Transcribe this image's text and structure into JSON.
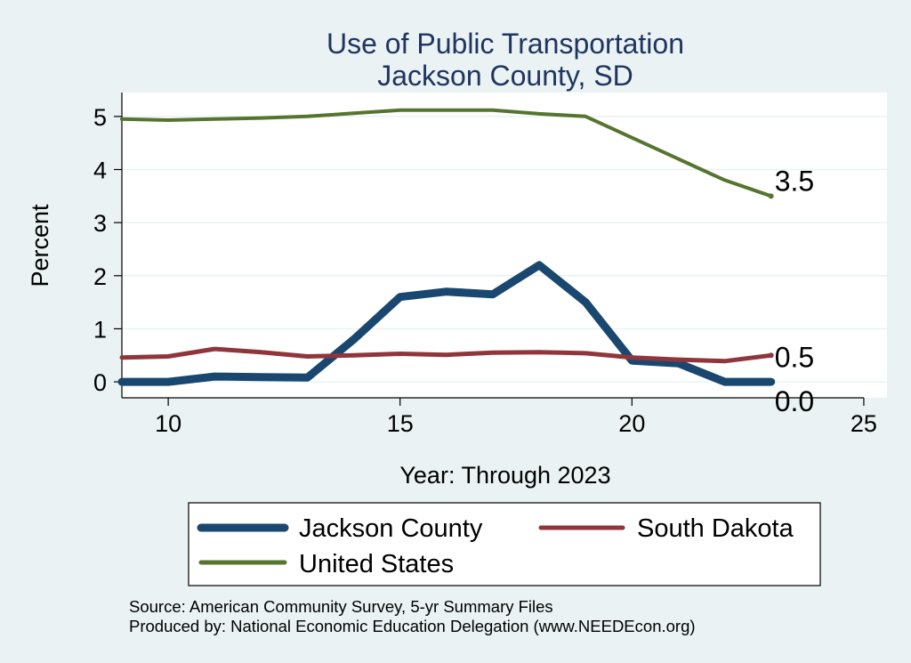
{
  "chart_data": {
    "type": "line",
    "title": "Use of Public Transportation",
    "subtitle": "Jackson County, SD",
    "xlabel": "Year: Through 2023",
    "ylabel": "Percent",
    "xlim": [
      9,
      25.5
    ],
    "ylim": [
      -0.3,
      5.45
    ],
    "xticks": [
      10,
      15,
      20,
      25
    ],
    "yticks": [
      0,
      1,
      2,
      3,
      4,
      5
    ],
    "grid": true,
    "legend_position": "bottom",
    "series": [
      {
        "name": "Jackson County",
        "color": "#1a476f",
        "x": [
          9,
          10,
          11,
          12,
          13,
          14,
          15,
          16,
          17,
          18,
          19,
          20,
          21,
          22,
          23
        ],
        "y": [
          0.0,
          0.0,
          0.1,
          0.09,
          0.08,
          0.8,
          1.6,
          1.7,
          1.65,
          2.2,
          1.5,
          0.4,
          0.35,
          0.0,
          0.0
        ],
        "end_label": "0.0"
      },
      {
        "name": "South Dakota",
        "color": "#90353b",
        "x": [
          9,
          10,
          11,
          12,
          13,
          14,
          15,
          16,
          17,
          18,
          19,
          20,
          21,
          22,
          23
        ],
        "y": [
          0.46,
          0.48,
          0.62,
          0.56,
          0.48,
          0.5,
          0.53,
          0.51,
          0.55,
          0.56,
          0.54,
          0.46,
          0.42,
          0.39,
          0.5
        ],
        "end_label": "0.5"
      },
      {
        "name": "United States",
        "color": "#55752f",
        "x": [
          9,
          10,
          11,
          12,
          13,
          14,
          15,
          16,
          17,
          18,
          19,
          20,
          21,
          22,
          23
        ],
        "y": [
          4.95,
          4.93,
          4.95,
          4.97,
          5.0,
          5.06,
          5.12,
          5.12,
          5.12,
          5.05,
          5.0,
          4.6,
          4.2,
          3.8,
          3.5
        ],
        "end_label": "3.5"
      }
    ],
    "source_note": "Source: American Community Survey, 5-yr Summary Files",
    "producer_note": "Produced by: National Economic Education Delegation (www.NEEDEcon.org)"
  }
}
